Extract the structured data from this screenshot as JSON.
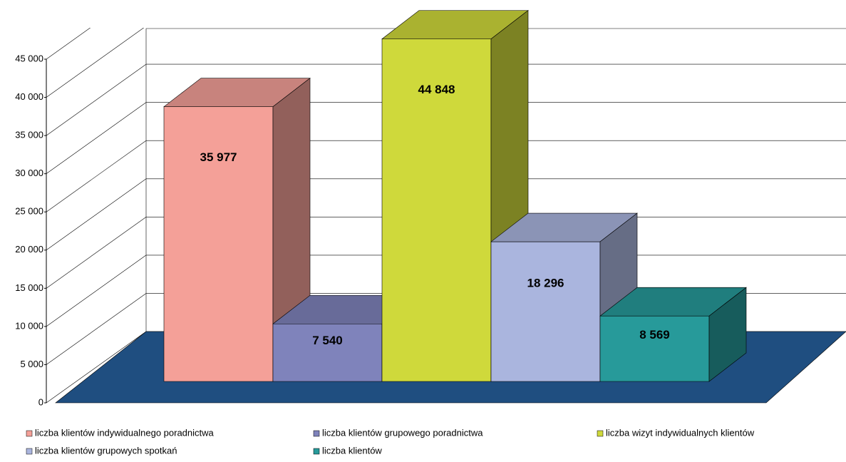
{
  "chart_data": {
    "type": "bar",
    "three_d": true,
    "series": [
      {
        "name": "liczba klientów indywidualnego poradnictwa",
        "color": "#f4a098",
        "values": [
          35977
        ],
        "value_labels": [
          "35 977"
        ]
      },
      {
        "name": "liczba klientów  grupowego poradnictwa",
        "color": "#7f83bb",
        "values": [
          7540
        ],
        "value_labels": [
          "7 540"
        ]
      },
      {
        "name": "liczba wizyt indywidualnych klientów",
        "color": "#cfd93b",
        "values": [
          44848
        ],
        "value_labels": [
          "44 848"
        ]
      },
      {
        "name": "liczba klientów grupowych spotkań",
        "color": "#aab5de",
        "values": [
          18296
        ],
        "value_labels": [
          "18 296"
        ]
      },
      {
        "name": "liczba klientów",
        "color": "#279a9a",
        "values": [
          8569
        ],
        "value_labels": [
          "8 569"
        ]
      }
    ],
    "ylim": [
      0,
      45000
    ],
    "yticks": [
      0,
      {
        "value": 5000,
        "label": "5 000"
      },
      {
        "value": 10000,
        "label": "10 000"
      },
      {
        "value": 15000,
        "label": "15 000"
      },
      {
        "value": 20000,
        "label": "20 000"
      },
      {
        "value": 25000,
        "label": "25 000"
      },
      {
        "value": 30000,
        "label": "30 000"
      },
      {
        "value": 35000,
        "label": "35 000"
      },
      {
        "value": 40000,
        "label": "40 000"
      },
      {
        "value": 45000,
        "label": "45 000"
      }
    ],
    "grid": true,
    "legend": "bottom",
    "floor_color": "#1f4e80"
  }
}
